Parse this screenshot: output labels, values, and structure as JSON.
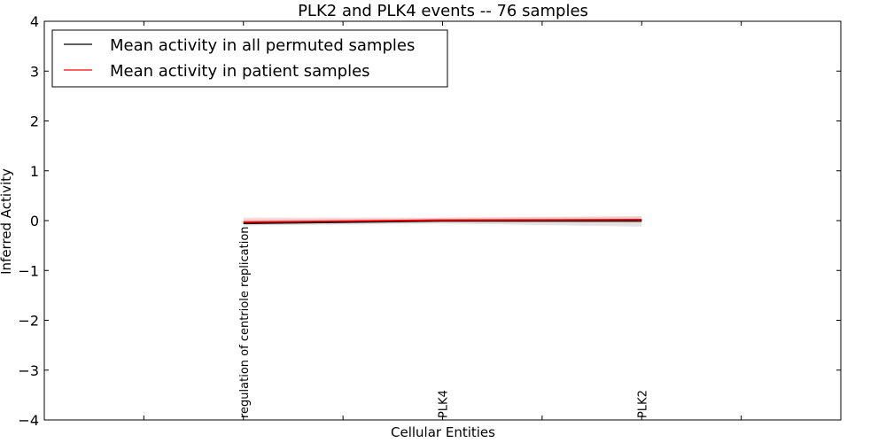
{
  "chart_data": {
    "type": "line",
    "title": "PLK2 and PLK4 events -- 76 samples",
    "xlabel": "Cellular Entities",
    "ylabel": "Inferred Activity",
    "ylim": [
      -4,
      4
    ],
    "yticks": [
      -4,
      -3,
      -2,
      -1,
      0,
      1,
      2,
      3,
      4
    ],
    "ytick_labels": [
      "−4",
      "−3",
      "−2",
      "−1",
      "0",
      "1",
      "2",
      "3",
      "4"
    ],
    "xlim": [
      0,
      4
    ],
    "xticks": [
      0.5,
      1,
      1.5,
      2,
      2.5,
      3,
      3.5
    ],
    "categories": [
      "regulation of centriole replication",
      "PLK4",
      "PLK2"
    ],
    "category_positions": [
      1,
      2,
      3
    ],
    "legend_position": "top-left",
    "series": [
      {
        "name": "Mean activity in all permuted samples",
        "color": "#000000",
        "values": [
          -0.05,
          0.0,
          0.0
        ],
        "band": {
          "lower": [
            -0.1,
            -0.06,
            -0.12
          ],
          "upper": [
            0.02,
            0.05,
            0.08
          ],
          "color": "#c8c8c8"
        }
      },
      {
        "name": "Mean activity in patient samples",
        "color": "#ff0000",
        "values": [
          -0.03,
          0.01,
          0.02
        ],
        "band": {
          "lower": [
            -0.06,
            -0.03,
            -0.05
          ],
          "upper": [
            0.06,
            0.06,
            0.09
          ],
          "color": "#f4b8b8"
        }
      }
    ]
  }
}
